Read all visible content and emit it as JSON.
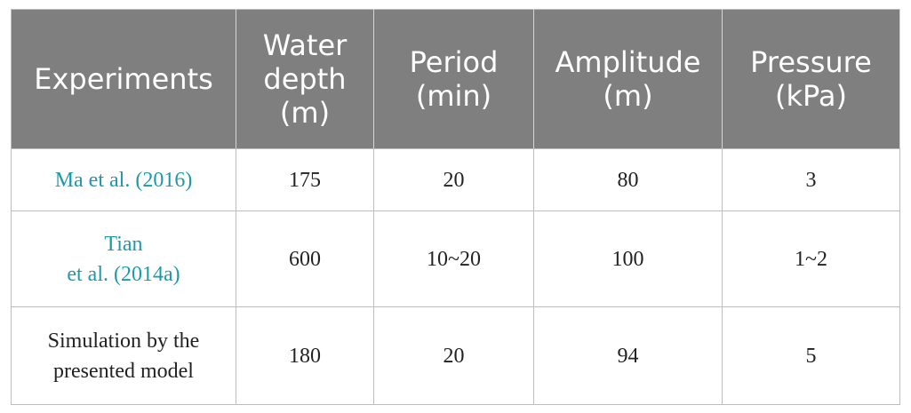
{
  "table": {
    "header": [
      [
        "Experiments"
      ],
      [
        "Water",
        "depth",
        "(m)"
      ],
      [
        "Period",
        "(min)"
      ],
      [
        "Amplitude",
        "(m)"
      ],
      [
        "Pressure",
        "(kPa)"
      ]
    ],
    "rows": [
      [
        [
          "Ma et al. (2016)"
        ],
        [
          "175"
        ],
        [
          "20"
        ],
        [
          "80"
        ],
        [
          "3"
        ]
      ],
      [
        [
          "Tian",
          "et al. (2014a)"
        ],
        [
          "600"
        ],
        [
          "10~20"
        ],
        [
          "100"
        ],
        [
          "1~2"
        ]
      ],
      [
        [
          "Simulation by the",
          "presented model"
        ],
        [
          "180"
        ],
        [
          "20"
        ],
        [
          "94"
        ],
        [
          "5"
        ]
      ]
    ]
  }
}
